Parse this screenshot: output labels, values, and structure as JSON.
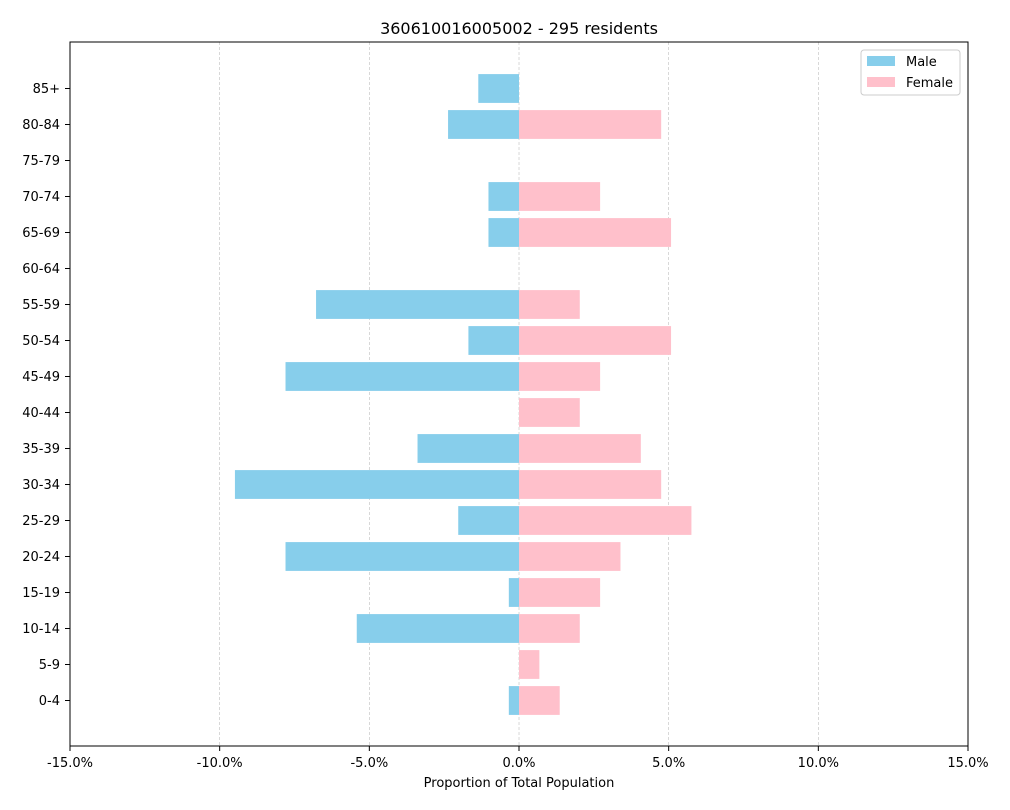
{
  "chart_data": {
    "type": "bar",
    "orientation": "horizontal",
    "title": "360610016005002 - 295 residents",
    "xlabel": "Proportion of Total Population",
    "ylabel": "",
    "xlim": [
      -15,
      15
    ],
    "x_ticks": [
      -15,
      -10,
      -5,
      0,
      5,
      10,
      15
    ],
    "x_tick_labels": [
      "-15.0%",
      "-10.0%",
      "-5.0%",
      "0.0%",
      "5.0%",
      "10.0%",
      "15.0%"
    ],
    "grid": "vertical dashed",
    "legend_position": "top-right",
    "categories": [
      "0-4",
      "5-9",
      "10-14",
      "15-19",
      "20-24",
      "25-29",
      "30-34",
      "35-39",
      "40-44",
      "45-49",
      "50-54",
      "55-59",
      "60-64",
      "65-69",
      "70-74",
      "75-79",
      "80-84",
      "85+"
    ],
    "series": [
      {
        "name": "Male",
        "color": "#87ceeb",
        "values": [
          -0.34,
          0,
          -5.42,
          -0.34,
          -7.8,
          -2.03,
          -9.49,
          -3.39,
          0,
          -7.8,
          -1.69,
          -6.78,
          0,
          -1.02,
          -1.02,
          0,
          -2.37,
          -1.36
        ]
      },
      {
        "name": "Female",
        "color": "#ffc0cb",
        "values": [
          1.36,
          0.68,
          2.03,
          2.71,
          3.39,
          5.76,
          4.75,
          4.07,
          2.03,
          2.71,
          5.08,
          2.03,
          0,
          5.08,
          2.71,
          0,
          4.75,
          0
        ]
      }
    ]
  }
}
